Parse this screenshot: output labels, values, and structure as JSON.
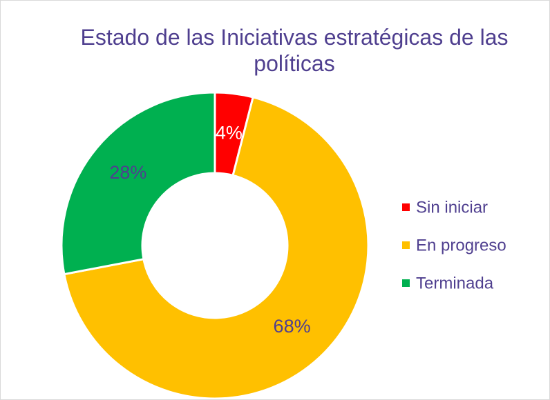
{
  "chart_data": {
    "type": "donut",
    "title": "Estado de las Iniciativas estratégicas de las políticas",
    "categories": [
      "Sin iniciar",
      "En progreso",
      "Terminada"
    ],
    "values": [
      4,
      68,
      28
    ],
    "value_labels": [
      "4%",
      "68%",
      "28%"
    ],
    "colors": [
      "#ff0000",
      "#ffc000",
      "#00b050"
    ],
    "value_label_colors": [
      "#ffffff",
      "#4f3f8f",
      "#4f3f8f"
    ],
    "legend": "right"
  }
}
